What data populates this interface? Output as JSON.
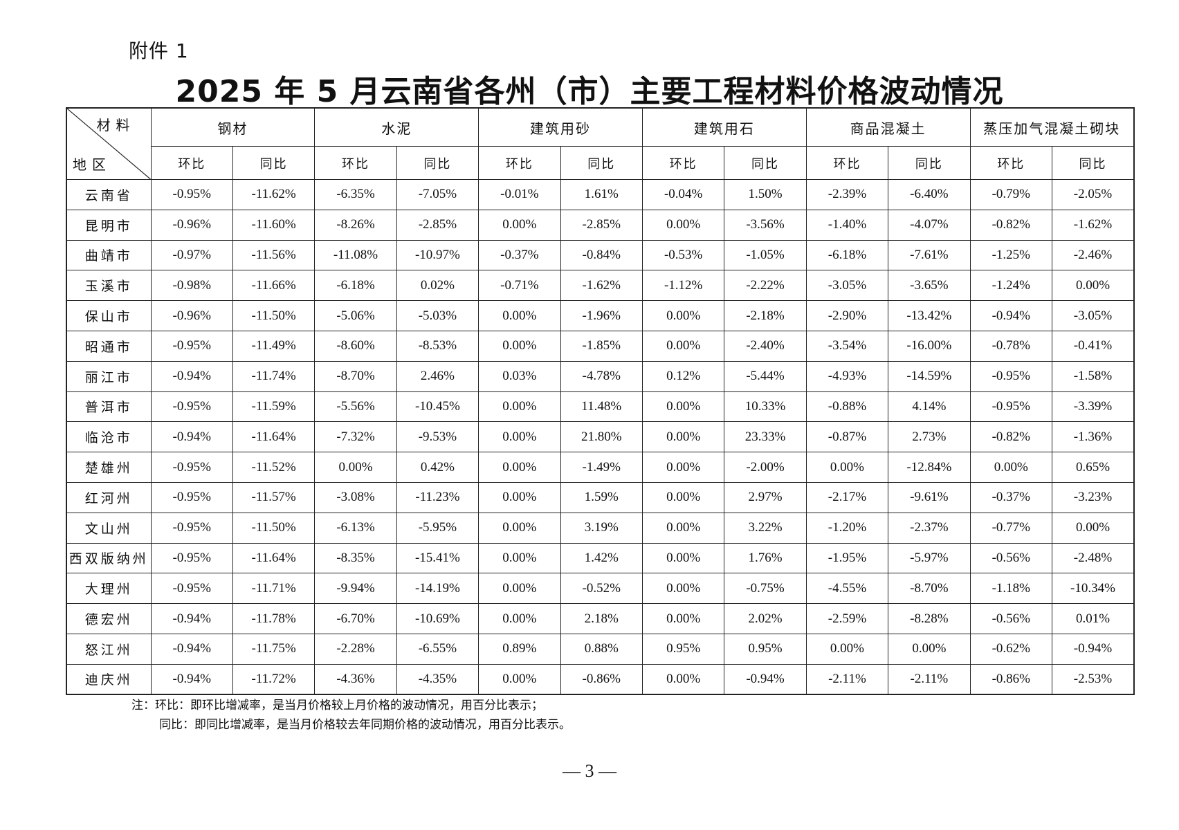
{
  "attachment_label": "附件 1",
  "title": "2025 年 5 月云南省各州（市）主要工程材料价格波动情况",
  "header": {
    "corner_top": "材料",
    "corner_bottom": "地区",
    "materials": [
      "钢材",
      "水泥",
      "建筑用砂",
      "建筑用石",
      "商品混凝土",
      "蒸压加气混凝土砌块"
    ],
    "sub_labels": [
      "环比",
      "同比"
    ]
  },
  "rows": [
    {
      "region": "云南省",
      "values": [
        "-0.95%",
        "-11.62%",
        "-6.35%",
        "-7.05%",
        "-0.01%",
        "1.61%",
        "-0.04%",
        "1.50%",
        "-2.39%",
        "-6.40%",
        "-0.79%",
        "-2.05%"
      ]
    },
    {
      "region": "昆明市",
      "values": [
        "-0.96%",
        "-11.60%",
        "-8.26%",
        "-2.85%",
        "0.00%",
        "-2.85%",
        "0.00%",
        "-3.56%",
        "-1.40%",
        "-4.07%",
        "-0.82%",
        "-1.62%"
      ]
    },
    {
      "region": "曲靖市",
      "values": [
        "-0.97%",
        "-11.56%",
        "-11.08%",
        "-10.97%",
        "-0.37%",
        "-0.84%",
        "-0.53%",
        "-1.05%",
        "-6.18%",
        "-7.61%",
        "-1.25%",
        "-2.46%"
      ]
    },
    {
      "region": "玉溪市",
      "values": [
        "-0.98%",
        "-11.66%",
        "-6.18%",
        "0.02%",
        "-0.71%",
        "-1.62%",
        "-1.12%",
        "-2.22%",
        "-3.05%",
        "-3.65%",
        "-1.24%",
        "0.00%"
      ]
    },
    {
      "region": "保山市",
      "values": [
        "-0.96%",
        "-11.50%",
        "-5.06%",
        "-5.03%",
        "0.00%",
        "-1.96%",
        "0.00%",
        "-2.18%",
        "-2.90%",
        "-13.42%",
        "-0.94%",
        "-3.05%"
      ]
    },
    {
      "region": "昭通市",
      "values": [
        "-0.95%",
        "-11.49%",
        "-8.60%",
        "-8.53%",
        "0.00%",
        "-1.85%",
        "0.00%",
        "-2.40%",
        "-3.54%",
        "-16.00%",
        "-0.78%",
        "-0.41%"
      ]
    },
    {
      "region": "丽江市",
      "values": [
        "-0.94%",
        "-11.74%",
        "-8.70%",
        "2.46%",
        "0.03%",
        "-4.78%",
        "0.12%",
        "-5.44%",
        "-4.93%",
        "-14.59%",
        "-0.95%",
        "-1.58%"
      ]
    },
    {
      "region": "普洱市",
      "values": [
        "-0.95%",
        "-11.59%",
        "-5.56%",
        "-10.45%",
        "0.00%",
        "11.48%",
        "0.00%",
        "10.33%",
        "-0.88%",
        "4.14%",
        "-0.95%",
        "-3.39%"
      ]
    },
    {
      "region": "临沧市",
      "values": [
        "-0.94%",
        "-11.64%",
        "-7.32%",
        "-9.53%",
        "0.00%",
        "21.80%",
        "0.00%",
        "23.33%",
        "-0.87%",
        "2.73%",
        "-0.82%",
        "-1.36%"
      ]
    },
    {
      "region": "楚雄州",
      "values": [
        "-0.95%",
        "-11.52%",
        "0.00%",
        "0.42%",
        "0.00%",
        "-1.49%",
        "0.00%",
        "-2.00%",
        "0.00%",
        "-12.84%",
        "0.00%",
        "0.65%"
      ]
    },
    {
      "region": "红河州",
      "values": [
        "-0.95%",
        "-11.57%",
        "-3.08%",
        "-11.23%",
        "0.00%",
        "1.59%",
        "0.00%",
        "2.97%",
        "-2.17%",
        "-9.61%",
        "-0.37%",
        "-3.23%"
      ]
    },
    {
      "region": "文山州",
      "values": [
        "-0.95%",
        "-11.50%",
        "-6.13%",
        "-5.95%",
        "0.00%",
        "3.19%",
        "0.00%",
        "3.22%",
        "-1.20%",
        "-2.37%",
        "-0.77%",
        "0.00%"
      ]
    },
    {
      "region": "西双版纳州",
      "values": [
        "-0.95%",
        "-11.64%",
        "-8.35%",
        "-15.41%",
        "0.00%",
        "1.42%",
        "0.00%",
        "1.76%",
        "-1.95%",
        "-5.97%",
        "-0.56%",
        "-2.48%"
      ]
    },
    {
      "region": "大理州",
      "values": [
        "-0.95%",
        "-11.71%",
        "-9.94%",
        "-14.19%",
        "0.00%",
        "-0.52%",
        "0.00%",
        "-0.75%",
        "-4.55%",
        "-8.70%",
        "-1.18%",
        "-10.34%"
      ]
    },
    {
      "region": "德宏州",
      "values": [
        "-0.94%",
        "-11.78%",
        "-6.70%",
        "-10.69%",
        "0.00%",
        "2.18%",
        "0.00%",
        "2.02%",
        "-2.59%",
        "-8.28%",
        "-0.56%",
        "0.01%"
      ]
    },
    {
      "region": "怒江州",
      "values": [
        "-0.94%",
        "-11.75%",
        "-2.28%",
        "-6.55%",
        "0.89%",
        "0.88%",
        "0.95%",
        "0.95%",
        "0.00%",
        "0.00%",
        "-0.62%",
        "-0.94%"
      ]
    },
    {
      "region": "迪庆州",
      "values": [
        "-0.94%",
        "-11.72%",
        "-4.36%",
        "-4.35%",
        "0.00%",
        "-0.86%",
        "0.00%",
        "-0.94%",
        "-2.11%",
        "-2.11%",
        "-0.86%",
        "-2.53%"
      ]
    }
  ],
  "notes": {
    "line1": "注：环比：即环比增减率，是当月价格较上月价格的波动情况，用百分比表示；",
    "line2": "同比：即同比增减率，是当月价格较去年同期价格的波动情况，用百分比表示。"
  },
  "page_number": "— 3 —"
}
